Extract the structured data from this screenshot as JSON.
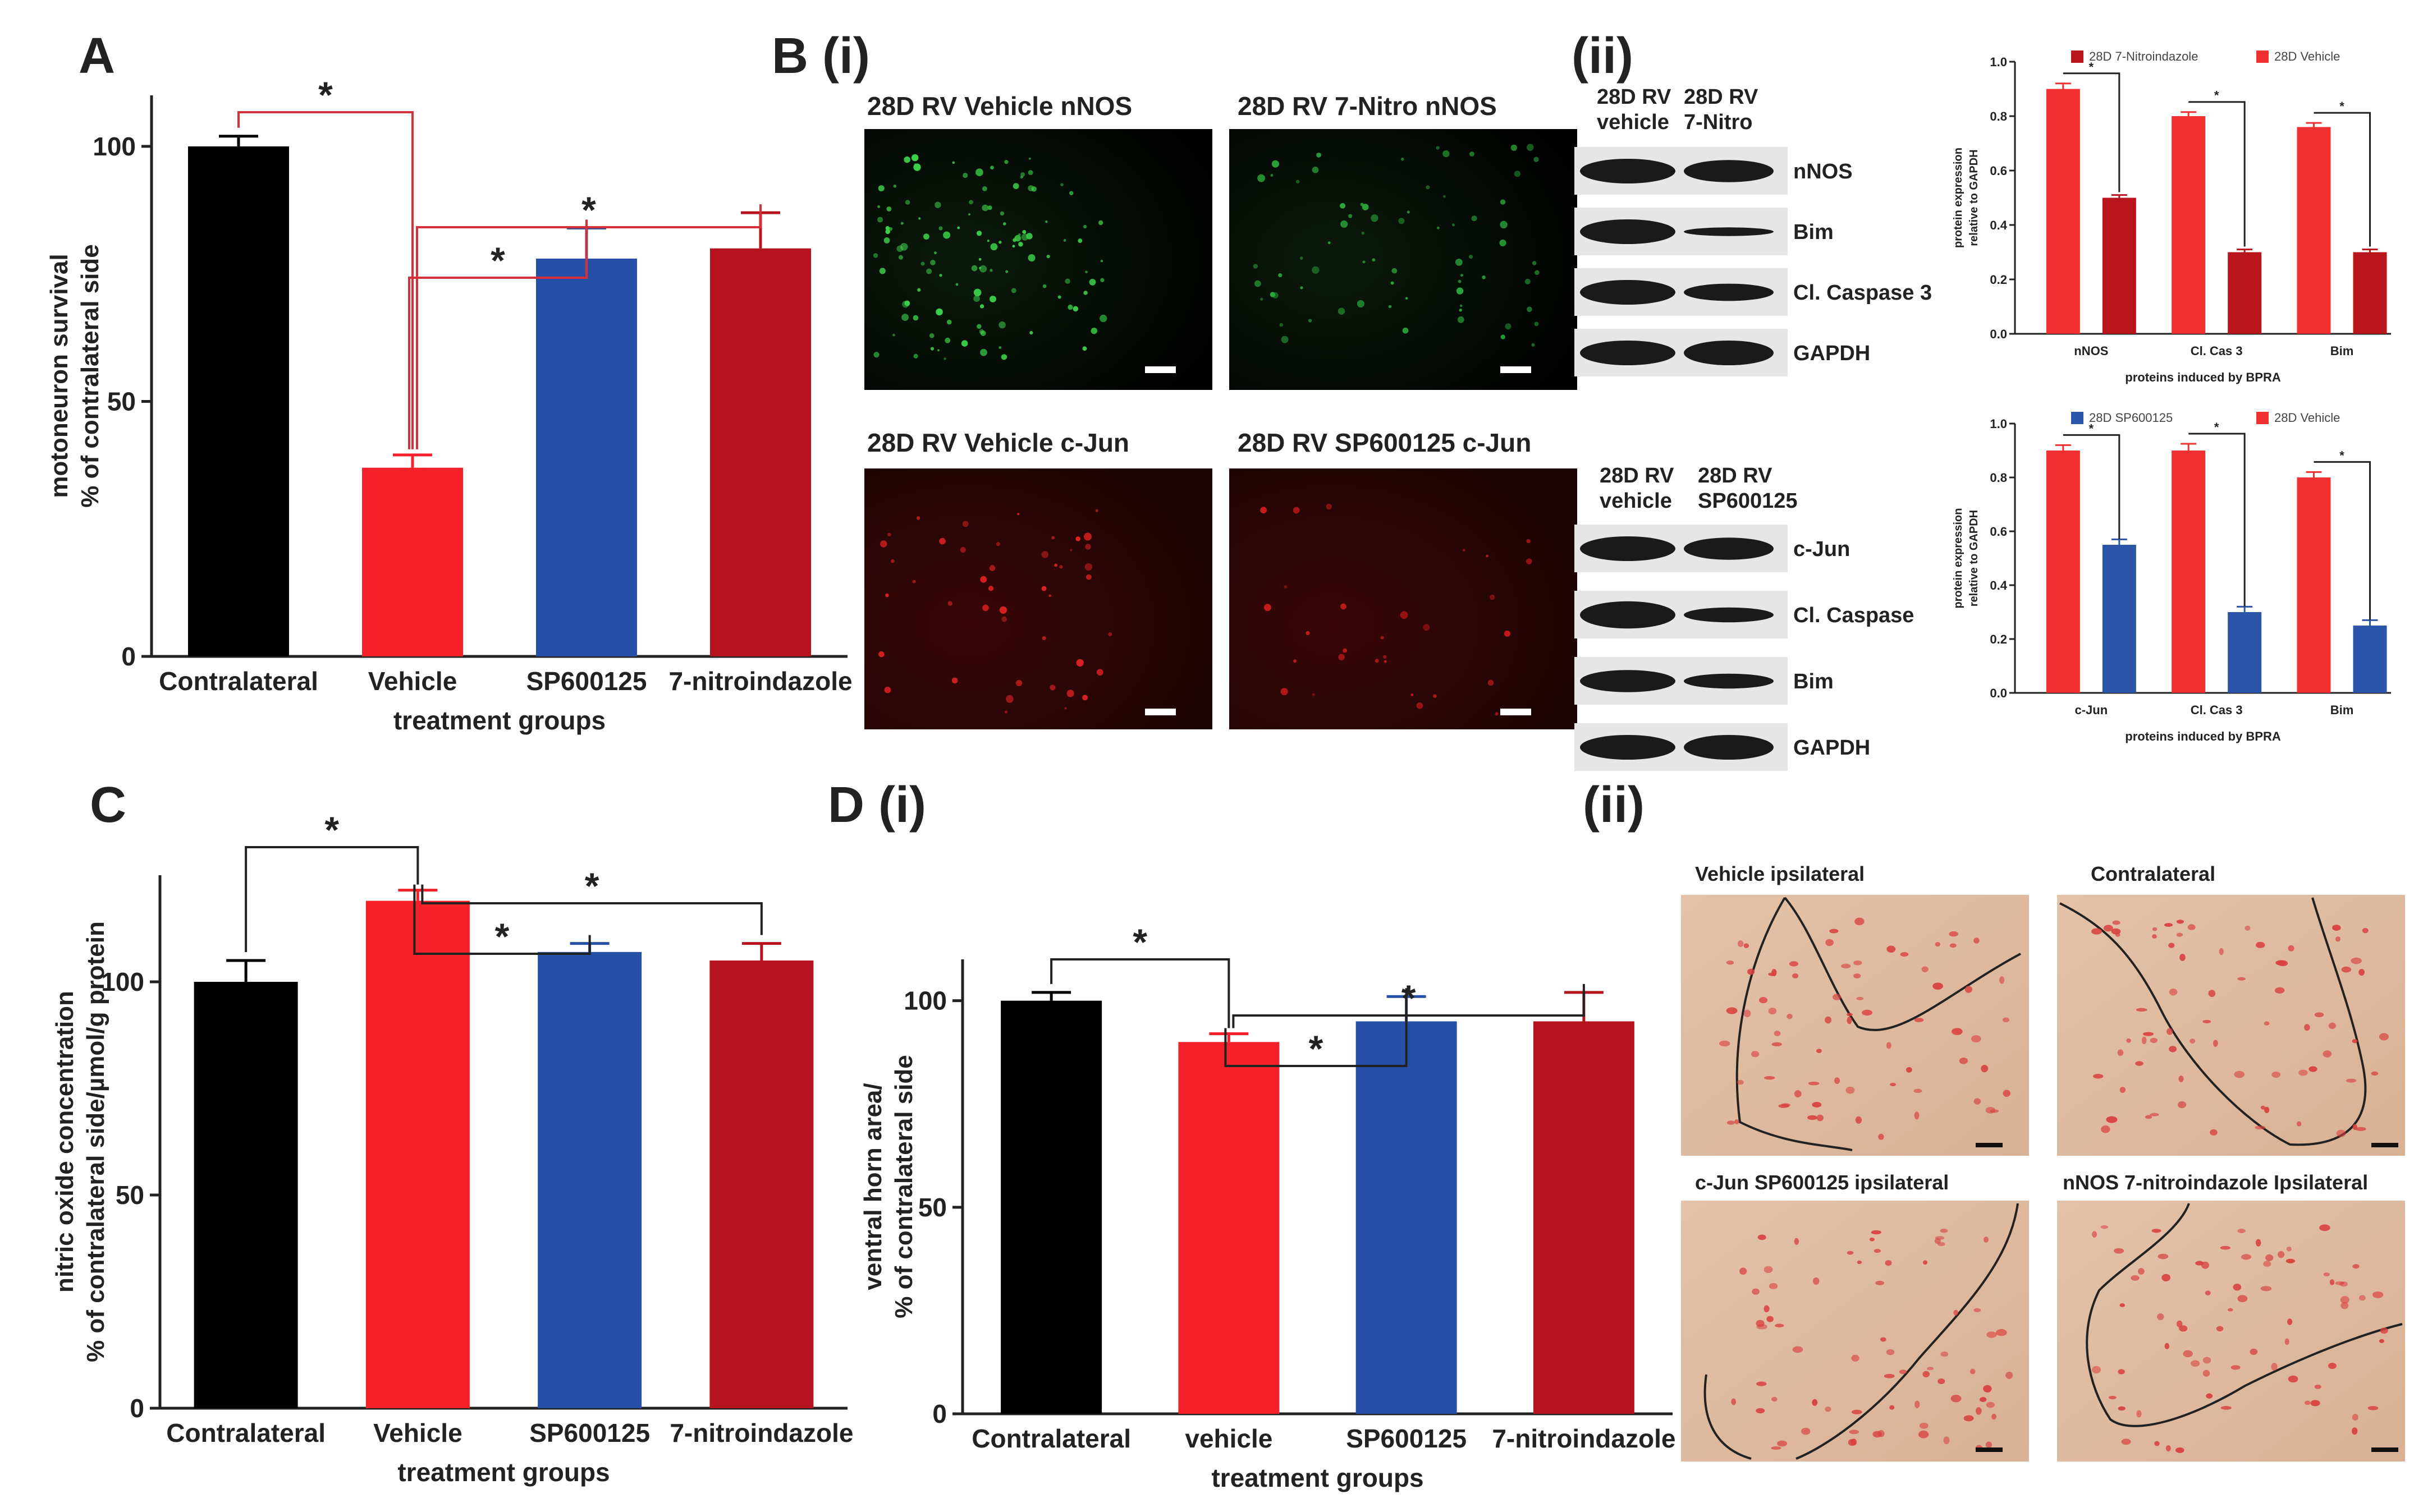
{
  "panel_labels": {
    "A": "A",
    "B": "B (i)",
    "Bii": "(ii)",
    "C": "C",
    "D": "D (i)",
    "Dii": "(ii)"
  },
  "colors": {
    "black": "#000000",
    "red": "#f5212a",
    "blue": "#2650a8",
    "darkred": "#b5141e",
    "wb_red": "#f03030",
    "wb_darkred": "#b8151c",
    "wb_blue": "#2a55a8"
  },
  "microscopy": {
    "top_left_title": "28D RV Vehicle nNOS",
    "top_right_title": "28D RV 7-Nitro nNOS",
    "bottom_left_title": "28D RV Vehicle c-Jun",
    "bottom_right_title": "28D RV SP600125 c-Jun"
  },
  "western_blots": {
    "top": {
      "col1": [
        "28D RV",
        "vehicle"
      ],
      "col2": [
        "28D RV",
        "7-Nitro"
      ],
      "bands": [
        "nNOS",
        "Bim",
        "Cl. Caspase 3",
        "GAPDH"
      ]
    },
    "bottom": {
      "col1": [
        "28D RV",
        "vehicle"
      ],
      "col2": [
        "28D RV",
        "SP600125"
      ],
      "bands": [
        "c-Jun",
        "Cl. Caspase",
        "Bim",
        "GAPDH"
      ]
    }
  },
  "histology": {
    "tl": "Vehicle ipsilateral",
    "tr": "Contralateral",
    "bl": "c-Jun SP600125  ipsilateral",
    "br": "nNOS 7-nitroindazole Ipsilateral"
  },
  "chart_data": [
    {
      "id": "A",
      "type": "bar",
      "categories": [
        "Contralateral",
        "Vehicle",
        "SP600125",
        "7-nitroindazole"
      ],
      "values": [
        100,
        37,
        78,
        80
      ],
      "errors": [
        2,
        2.5,
        6,
        7
      ],
      "colors": [
        "#000000",
        "#f5212a",
        "#2650a8",
        "#b5141e"
      ],
      "ylim": [
        0,
        110
      ],
      "yticks": [
        0,
        50,
        100
      ],
      "xlabel": "treatment groups",
      "ylabel": [
        "motoneuron survival",
        "% of contralateral side"
      ],
      "significance": [
        {
          "from": 0,
          "to": 1,
          "label": "*"
        },
        {
          "from": 1,
          "to": 2,
          "label": "*"
        },
        {
          "from": 1,
          "to": 3,
          "label": "*"
        }
      ]
    },
    {
      "id": "Bii_top",
      "type": "bar",
      "categories": [
        "nNOS",
        "Cl. Cas 3",
        "Bim"
      ],
      "series": [
        {
          "name": "28D Vehicle",
          "values": [
            0.9,
            0.8,
            0.76
          ],
          "errors": [
            0.02,
            0.015,
            0.015
          ]
        },
        {
          "name": "28D 7-Nitroindazole",
          "values": [
            0.5,
            0.3,
            0.3
          ],
          "errors": [
            0.01,
            0.01,
            0.01
          ]
        }
      ],
      "ylim": [
        0,
        1
      ],
      "yticks": [
        0.0,
        0.2,
        0.4,
        0.6,
        0.8,
        1.0
      ],
      "xlabel": "proteins induced by BPRA",
      "ylabel": [
        "protein expression",
        "relative to GAPDH"
      ],
      "legend": "top"
    },
    {
      "id": "Bii_bottom",
      "type": "bar",
      "categories": [
        "c-Jun",
        "Cl. Cas 3",
        "Bim"
      ],
      "series": [
        {
          "name": "28D Vehicle",
          "values": [
            0.9,
            0.9,
            0.8
          ],
          "errors": [
            0.02,
            0.025,
            0.02
          ]
        },
        {
          "name": "28D SP600125",
          "values": [
            0.55,
            0.3,
            0.25
          ],
          "errors": [
            0.02,
            0.02,
            0.02
          ]
        }
      ],
      "ylim": [
        0,
        1
      ],
      "yticks": [
        0.0,
        0.2,
        0.4,
        0.6,
        0.8,
        1.0
      ],
      "xlabel": "proteins induced by BPRA",
      "ylabel": [
        "protein expression",
        "relative to GAPDH"
      ],
      "legend": "top"
    },
    {
      "id": "C",
      "type": "bar",
      "categories": [
        "Contralateral",
        "Vehicle",
        "SP600125",
        "7-nitroindazole"
      ],
      "values": [
        100,
        119,
        107,
        105
      ],
      "errors": [
        5,
        2.5,
        2,
        4
      ],
      "colors": [
        "#000000",
        "#f5212a",
        "#2650a8",
        "#b5141e"
      ],
      "ylim": [
        0,
        125
      ],
      "yticks": [
        0,
        50,
        100
      ],
      "xlabel": "treatment groups",
      "ylabel": [
        "nitric oxide concentration",
        "% of contralateral side/µmol/g protein"
      ],
      "significance": [
        {
          "from": 0,
          "to": 1,
          "label": "*"
        },
        {
          "from": 1,
          "to": 2,
          "label": "*"
        },
        {
          "from": 1,
          "to": 3,
          "label": "*"
        }
      ]
    },
    {
      "id": "D",
      "type": "bar",
      "categories": [
        "Contralateral",
        "vehicle",
        "SP600125",
        "7-nitroindazole"
      ],
      "values": [
        100,
        90,
        95,
        95
      ],
      "errors": [
        2,
        2,
        6,
        7
      ],
      "colors": [
        "#000000",
        "#f5212a",
        "#2650a8",
        "#b5141e"
      ],
      "ylim": [
        0,
        110
      ],
      "yticks": [
        0,
        50,
        100
      ],
      "xlabel": "treatment groups",
      "ylabel": [
        "ventral horn area/",
        "% of contralateral side"
      ],
      "significance": [
        {
          "from": 0,
          "to": 1,
          "label": "*"
        },
        {
          "from": 1,
          "to": 2,
          "label": "*"
        },
        {
          "from": 1,
          "to": 3,
          "label": "*"
        }
      ]
    }
  ]
}
